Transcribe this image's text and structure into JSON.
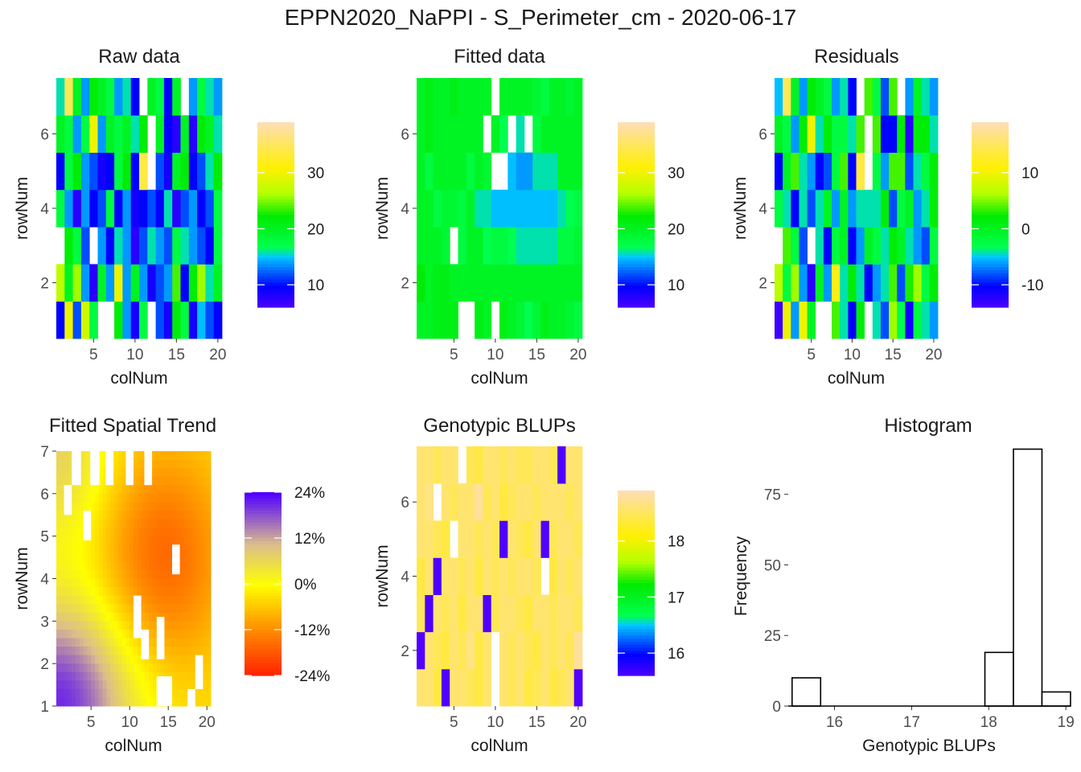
{
  "title": "EPPN2020_NaPPI - S_Perimeter_cm - 2020-06-17",
  "chart_data": [
    {
      "id": "raw",
      "type": "heatmap",
      "title": "Raw data",
      "xlabel": "colNum",
      "ylabel": "rowNum",
      "xticks": [
        5,
        10,
        15,
        20
      ],
      "yticks": [
        2,
        4,
        6
      ],
      "xlim": [
        0.5,
        20.5
      ],
      "ylim": [
        0.5,
        7.5
      ],
      "legend": {
        "min": 6,
        "max": 39,
        "ticks": [
          10,
          20,
          30
        ],
        "scale": "spectral"
      },
      "grid": [
        [
          10,
          30,
          12,
          28,
          18,
          null,
          null,
          22,
          14,
          9,
          18,
          null,
          12,
          9,
          22,
          18,
          9,
          15,
          12,
          10
        ],
        [
          27,
          20,
          26,
          14,
          8,
          20,
          14,
          30,
          14,
          20,
          14,
          9,
          12,
          14,
          24,
          10,
          22,
          26,
          16,
          20
        ],
        [
          null,
          22,
          18,
          12,
          null,
          14,
          10,
          16,
          14,
          8,
          12,
          16,
          14,
          12,
          18,
          16,
          14,
          12,
          10,
          18
        ],
        [
          18,
          14,
          8,
          14,
          10,
          12,
          18,
          10,
          14,
          9,
          10,
          12,
          10,
          16,
          8,
          12,
          14,
          10,
          12,
          18
        ],
        [
          10,
          18,
          22,
          14,
          12,
          9,
          10,
          18,
          22,
          10,
          34,
          null,
          12,
          9,
          20,
          22,
          10,
          12,
          16,
          22
        ],
        [
          20,
          18,
          14,
          18,
          30,
          14,
          20,
          18,
          20,
          16,
          22,
          null,
          20,
          10,
          8,
          20,
          8,
          22,
          20,
          16
        ],
        [
          16,
          35,
          20,
          14,
          22,
          20,
          18,
          14,
          16,
          10,
          null,
          20,
          18,
          10,
          20,
          null,
          14,
          18,
          16,
          14
        ]
      ]
    },
    {
      "id": "fitted",
      "type": "heatmap",
      "title": "Fitted data",
      "xlabel": "colNum",
      "ylabel": "rowNum",
      "xticks": [
        5,
        10,
        15,
        20
      ],
      "yticks": [
        2,
        4,
        6
      ],
      "xlim": [
        0.5,
        20.5
      ],
      "ylim": [
        0.5,
        7.5
      ],
      "legend": {
        "min": 6,
        "max": 39,
        "ticks": [
          10,
          20,
          30
        ],
        "scale": "spectral"
      },
      "grid": [
        [
          20,
          20,
          21,
          21,
          21,
          null,
          null,
          21,
          20,
          null,
          21,
          20,
          19,
          17,
          19,
          21,
          20,
          20,
          19,
          18
        ],
        [
          22,
          20,
          21,
          21,
          20,
          20,
          20,
          20,
          20,
          20,
          20,
          20,
          20,
          20,
          20,
          20,
          20,
          20,
          20,
          20
        ],
        [
          20,
          20,
          20,
          19,
          null,
          18,
          20,
          20,
          17,
          18,
          18,
          17,
          16,
          16,
          16,
          16,
          16,
          18,
          18,
          19
        ],
        [
          20,
          20,
          18,
          19,
          19,
          18,
          20,
          16,
          16,
          15,
          15,
          15,
          15,
          15,
          15,
          15,
          15,
          16,
          17,
          18
        ],
        [
          20,
          18,
          20,
          20,
          20,
          20,
          18,
          20,
          19,
          null,
          null,
          15,
          14,
          14,
          16,
          16,
          16,
          20,
          20,
          20
        ],
        [
          20,
          21,
          20,
          20,
          20,
          20,
          20,
          20,
          null,
          20,
          17,
          null,
          16,
          null,
          18,
          20,
          20,
          20,
          20,
          20
        ],
        [
          20,
          21,
          20,
          20,
          21,
          20,
          20,
          20,
          20,
          null,
          20,
          20,
          20,
          20,
          19,
          18,
          20,
          20,
          19,
          20
        ]
      ]
    },
    {
      "id": "residuals",
      "type": "heatmap",
      "title": "Residuals",
      "xlabel": "colNum",
      "ylabel": "rowNum",
      "xticks": [
        5,
        10,
        15,
        20
      ],
      "yticks": [
        2,
        4,
        6
      ],
      "xlim": [
        0.5,
        20.5
      ],
      "ylim": [
        0.5,
        7.5
      ],
      "legend": {
        "min": -14,
        "max": 19,
        "ticks": [
          -10,
          0,
          10
        ],
        "scale": "spectral"
      },
      "grid": [
        [
          -13,
          10,
          -6,
          10,
          0,
          null,
          null,
          4,
          -4,
          -10,
          2,
          null,
          -4,
          -8,
          6,
          -3,
          -11,
          -2,
          -4,
          -6
        ],
        [
          7,
          -2,
          6,
          -6,
          -12,
          0,
          -6,
          12,
          -4,
          2,
          -4,
          -10,
          -6,
          -4,
          4,
          -8,
          3,
          6,
          -2,
          2
        ],
        [
          null,
          4,
          -2,
          -8,
          null,
          -4,
          -10,
          -2,
          0,
          -10,
          -6,
          0,
          -2,
          -4,
          2,
          0,
          -4,
          -6,
          -8,
          -2
        ],
        [
          -2,
          -4,
          -10,
          -4,
          -8,
          -4,
          0,
          -6,
          0,
          -6,
          -4,
          -4,
          -4,
          2,
          -8,
          -2,
          0,
          -6,
          -4,
          2
        ],
        [
          -10,
          0,
          4,
          -4,
          -6,
          -10,
          -8,
          -2,
          4,
          -10,
          14,
          null,
          -2,
          -6,
          4,
          4,
          -8,
          -4,
          -2,
          2
        ],
        [
          0,
          -2,
          -6,
          2,
          10,
          -4,
          2,
          -2,
          -2,
          -4,
          4,
          null,
          4,
          -10,
          -10,
          2,
          -12,
          2,
          2,
          -4
        ],
        [
          -5,
          15,
          0,
          -6,
          2,
          0,
          -2,
          -6,
          -4,
          -10,
          null,
          4,
          -2,
          -8,
          4,
          null,
          -6,
          0,
          -4,
          -6
        ]
      ]
    },
    {
      "id": "trend",
      "type": "heatmap",
      "title": "Fitted Spatial Trend",
      "xlabel": "colNum",
      "ylabel": "rowNum",
      "xticks": [
        5,
        10,
        15,
        20
      ],
      "yticks": [
        1,
        2,
        3,
        4,
        5,
        6,
        7
      ],
      "xlim": [
        0.5,
        20.5
      ],
      "ylim": [
        1,
        7
      ],
      "legend": {
        "min": -24,
        "max": 24,
        "ticks": [
          "24%",
          "12%",
          "0%",
          "-12%",
          "-24%"
        ],
        "scale": "trend"
      }
    },
    {
      "id": "blups",
      "type": "heatmap",
      "title": "Genotypic BLUPs",
      "xlabel": "colNum",
      "ylabel": "rowNum",
      "xticks": [
        5,
        10,
        15,
        20
      ],
      "yticks": [
        2,
        4,
        6
      ],
      "xlim": [
        0.5,
        20.5
      ],
      "ylim": [
        0.5,
        7.5
      ],
      "legend": {
        "min": 15.6,
        "max": 18.9,
        "ticks": [
          16,
          17,
          18
        ],
        "scale": "spectral"
      },
      "grid": [
        [
          18.6,
          18.6,
          18.4,
          15.6,
          18.6,
          18.6,
          18.5,
          18.4,
          18.6,
          null,
          18.6,
          18.5,
          18.6,
          18.4,
          18.5,
          18.6,
          18.4,
          18.5,
          18.6,
          15.6
        ],
        [
          15.6,
          18.6,
          18.5,
          18.4,
          18.6,
          18.5,
          18.7,
          18.4,
          18.6,
          null,
          18.6,
          18.5,
          18.6,
          18.5,
          18.4,
          18.6,
          18.5,
          18.6,
          18.5,
          18.8
        ],
        [
          18.5,
          15.6,
          18.6,
          18.5,
          18.6,
          18.4,
          18.6,
          18.6,
          15.6,
          18.5,
          18.6,
          18.6,
          18.5,
          18.4,
          18.6,
          18.6,
          18.5,
          18.6,
          18.6,
          18.5
        ],
        [
          18.4,
          18.6,
          15.6,
          18.6,
          18.6,
          18.5,
          18.6,
          18.4,
          18.6,
          18.5,
          18.6,
          18.5,
          18.6,
          18.6,
          18.5,
          null,
          18.4,
          18.6,
          18.5,
          18.6
        ],
        [
          18.6,
          18.6,
          18.5,
          18.4,
          null,
          18.6,
          18.6,
          18.5,
          18.6,
          18.5,
          15.6,
          18.6,
          18.5,
          18.4,
          18.6,
          15.6,
          18.5,
          18.6,
          18.6,
          18.5
        ],
        [
          18.6,
          18.7,
          null,
          18.6,
          18.5,
          18.6,
          18.6,
          18.8,
          18.5,
          18.6,
          18.4,
          18.5,
          18.6,
          18.6,
          18.5,
          18.6,
          18.6,
          18.6,
          18.5,
          18.6
        ],
        [
          18.6,
          18.6,
          18.5,
          18.6,
          18.6,
          null,
          18.5,
          18.4,
          18.6,
          18.6,
          18.5,
          18.6,
          18.5,
          18.5,
          18.6,
          18.6,
          18.5,
          15.6,
          18.6,
          18.6
        ]
      ]
    },
    {
      "id": "hist",
      "type": "bar",
      "title": "Histogram",
      "xlabel": "Genotypic BLUPs",
      "ylabel": "Frequency",
      "xticks": [
        16,
        17,
        18,
        19
      ],
      "yticks": [
        0,
        25,
        50,
        75
      ],
      "xlim": [
        15.4,
        19.05
      ],
      "ylim": [
        0,
        92
      ],
      "bins": [
        {
          "x0": 15.45,
          "x1": 15.82,
          "count": 10
        },
        {
          "x0": 17.95,
          "x1": 18.32,
          "count": 19
        },
        {
          "x0": 18.32,
          "x1": 18.69,
          "count": 91
        },
        {
          "x0": 18.69,
          "x1": 19.06,
          "count": 5
        }
      ]
    }
  ]
}
